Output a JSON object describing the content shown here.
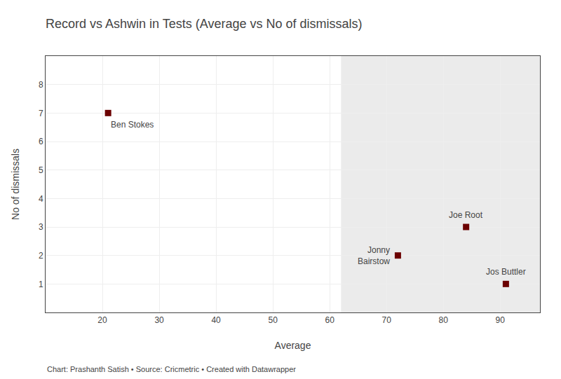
{
  "chart_data": {
    "type": "scatter",
    "title": "Record vs Ashwin in Tests (Average vs No of dismissals)",
    "xlabel": "Average",
    "ylabel": "No of dismissals",
    "x": [
      21,
      72,
      84,
      91
    ],
    "values": [
      7,
      2,
      3,
      1
    ],
    "point_labels": [
      "Ben Stokes",
      "Jonny\nBairstow",
      "Joe Root",
      "Jos Buttler"
    ],
    "color": "#6b0000",
    "marker": "square",
    "xlim": [
      10,
      97
    ],
    "ylim": [
      0,
      9
    ],
    "xticks": [
      20,
      30,
      40,
      50,
      60,
      70,
      80,
      90
    ],
    "yticks": [
      1,
      2,
      3,
      4,
      5,
      6,
      7,
      8
    ],
    "grid": true,
    "span": {
      "from": 62,
      "color": "#ebebeb"
    },
    "footer": "Chart: Prashanth Satish • Source: Cricmetric • Created with Datawrapper"
  }
}
